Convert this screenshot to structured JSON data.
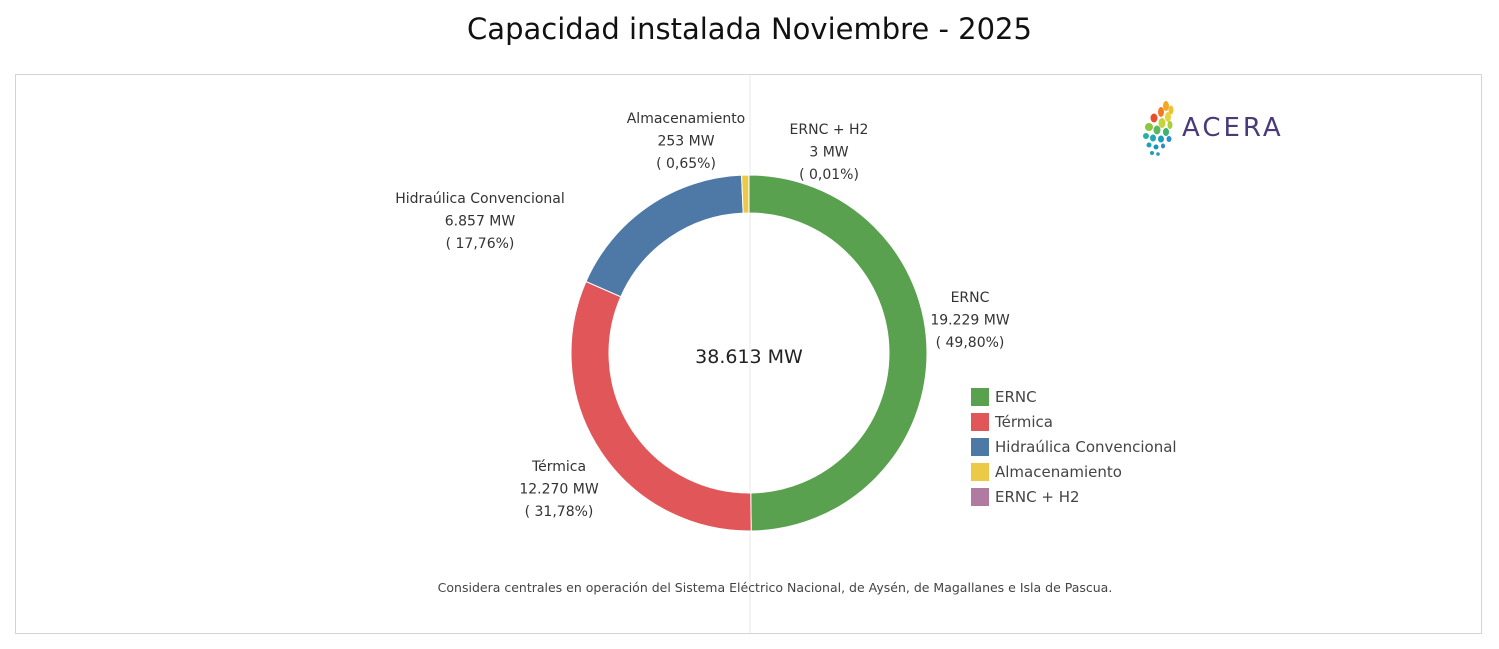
{
  "title": "Capacidad instalada Noviembre - 2025",
  "center_label": "38.613 MW",
  "footnote": "Considera centrales en operación del Sistema Eléctrico Nacional, de Aysén, de Magallanes e Isla de Pascua.",
  "logo": {
    "text": "ACERA"
  },
  "chart_data": {
    "type": "pie",
    "variant": "donut",
    "title": "Capacidad instalada Noviembre - 2025",
    "total_label": "38.613 MW",
    "total": 38613,
    "unit": "MW",
    "legend_placement": "right",
    "slices": [
      {
        "name": "ERNC",
        "value": 19229,
        "value_label": "19.229 MW",
        "pct_label": "( 49,80%)",
        "color": "#59a14f"
      },
      {
        "name": "Térmica",
        "value": 12270,
        "value_label": "12.270 MW",
        "pct_label": "( 31,78%)",
        "color": "#e15759"
      },
      {
        "name": "Hidraúlica Convencional",
        "value": 6857,
        "value_label": "6.857 MW",
        "pct_label": "( 17,76%)",
        "color": "#4e79a7"
      },
      {
        "name": "Almacenamiento",
        "value": 253,
        "value_label": "253 MW",
        "pct_label": "( 0,65%)",
        "color": "#edc948"
      },
      {
        "name": "ERNC + H2",
        "value": 3,
        "value_label": "3 MW",
        "pct_label": "( 0,01%)",
        "color": "#b07aa1"
      }
    ]
  }
}
